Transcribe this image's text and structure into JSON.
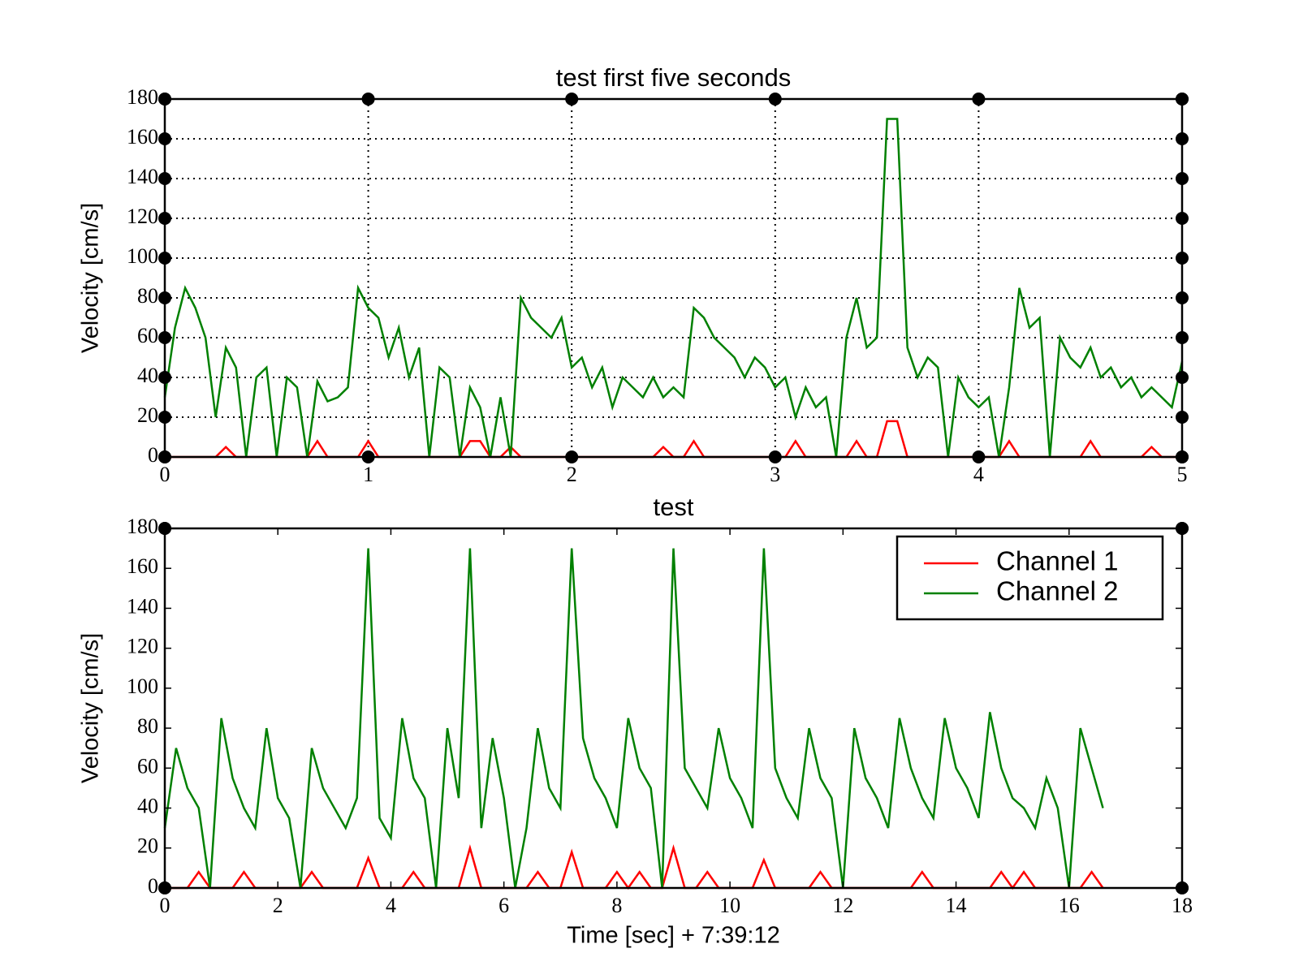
{
  "chart_data": [
    {
      "type": "line",
      "title": "test first five seconds",
      "ylabel": "Velocity [cm/s]",
      "grid": true,
      "xlim": [
        0,
        5
      ],
      "xticks": [
        0,
        1,
        2,
        3,
        4,
        5
      ],
      "ylim": [
        0,
        180
      ],
      "yticks": [
        0,
        20,
        40,
        60,
        80,
        100,
        120,
        140,
        160,
        180
      ],
      "x": [
        0,
        0.05,
        0.1,
        0.15,
        0.2,
        0.25,
        0.3,
        0.35,
        0.4,
        0.45,
        0.5,
        0.55,
        0.6,
        0.65,
        0.7,
        0.75,
        0.8,
        0.85,
        0.9,
        0.95,
        1,
        1.05,
        1.1,
        1.15,
        1.2,
        1.25,
        1.3,
        1.35,
        1.4,
        1.45,
        1.5,
        1.55,
        1.6,
        1.65,
        1.7,
        1.75,
        1.8,
        1.85,
        1.9,
        1.95,
        2,
        2.05,
        2.1,
        2.15,
        2.2,
        2.25,
        2.3,
        2.35,
        2.4,
        2.45,
        2.5,
        2.55,
        2.6,
        2.65,
        2.7,
        2.75,
        2.8,
        2.85,
        2.9,
        2.95,
        3,
        3.05,
        3.1,
        3.15,
        3.2,
        3.25,
        3.3,
        3.35,
        3.4,
        3.45,
        3.5,
        3.55,
        3.6,
        3.65,
        3.7,
        3.75,
        3.8,
        3.85,
        3.9,
        3.95,
        4,
        4.05,
        4.1,
        4.15,
        4.2,
        4.25,
        4.3,
        4.35,
        4.4,
        4.45,
        4.5,
        4.55,
        4.6,
        4.65,
        4.7,
        4.75,
        4.8,
        4.85,
        4.9,
        4.95,
        5
      ],
      "series": [
        {
          "color": "#ff0000",
          "values": [
            0,
            0,
            0,
            0,
            0,
            0,
            5,
            0,
            0,
            0,
            0,
            0,
            0,
            0,
            0,
            8,
            0,
            0,
            0,
            0,
            8,
            0,
            0,
            0,
            0,
            0,
            0,
            0,
            0,
            0,
            8,
            8,
            0,
            0,
            5,
            0,
            0,
            0,
            0,
            0,
            0,
            0,
            0,
            0,
            0,
            0,
            0,
            0,
            0,
            5,
            0,
            0,
            8,
            0,
            0,
            0,
            0,
            0,
            0,
            0,
            0,
            0,
            8,
            0,
            0,
            0,
            0,
            0,
            8,
            0,
            0,
            18,
            18,
            0,
            0,
            0,
            0,
            0,
            0,
            0,
            0,
            0,
            0,
            8,
            0,
            0,
            0,
            0,
            0,
            0,
            0,
            8,
            0,
            0,
            0,
            0,
            0,
            5,
            0,
            0,
            0
          ]
        },
        {
          "color": "#008000",
          "values": [
            30,
            65,
            85,
            75,
            60,
            20,
            55,
            45,
            0,
            40,
            45,
            0,
            40,
            35,
            0,
            38,
            28,
            30,
            35,
            85,
            75,
            70,
            50,
            65,
            40,
            55,
            0,
            45,
            40,
            0,
            35,
            25,
            0,
            30,
            0,
            80,
            70,
            65,
            60,
            70,
            45,
            50,
            35,
            45,
            25,
            40,
            35,
            30,
            40,
            30,
            35,
            30,
            75,
            70,
            60,
            55,
            50,
            40,
            50,
            45,
            35,
            40,
            20,
            35,
            25,
            30,
            0,
            60,
            80,
            55,
            60,
            170,
            170,
            55,
            40,
            50,
            45,
            0,
            40,
            30,
            25,
            30,
            0,
            35,
            85,
            65,
            70,
            0,
            60,
            50,
            45,
            55,
            40,
            45,
            35,
            40,
            30,
            35,
            30,
            25,
            48
          ]
        }
      ]
    },
    {
      "type": "line",
      "title": "test",
      "ylabel": "Velocity [cm/s]",
      "xlabel": "Time [sec] + 7:39:12",
      "grid": false,
      "legend": "upper right",
      "xlim": [
        0,
        18
      ],
      "xticks": [
        0,
        2,
        4,
        6,
        8,
        10,
        12,
        14,
        16,
        18
      ],
      "ylim": [
        0,
        180
      ],
      "yticks": [
        0,
        20,
        40,
        60,
        80,
        100,
        120,
        140,
        160,
        180
      ],
      "x": [
        0,
        0.2,
        0.4,
        0.6,
        0.8,
        1,
        1.2,
        1.4,
        1.6,
        1.8,
        2,
        2.2,
        2.4,
        2.6,
        2.8,
        3,
        3.2,
        3.4,
        3.6,
        3.8,
        4,
        4.2,
        4.4,
        4.6,
        4.8,
        5,
        5.2,
        5.4,
        5.6,
        5.8,
        6,
        6.2,
        6.4,
        6.6,
        6.8,
        7,
        7.2,
        7.4,
        7.6,
        7.8,
        8,
        8.2,
        8.4,
        8.6,
        8.8,
        9,
        9.2,
        9.4,
        9.6,
        9.8,
        10,
        10.2,
        10.4,
        10.6,
        10.8,
        11,
        11.2,
        11.4,
        11.6,
        11.8,
        12,
        12.2,
        12.4,
        12.6,
        12.8,
        13,
        13.2,
        13.4,
        13.6,
        13.8,
        14,
        14.2,
        14.4,
        14.6,
        14.8,
        15,
        15.2,
        15.4,
        15.6,
        15.8,
        16,
        16.2,
        16.4,
        16.6
      ],
      "series": [
        {
          "name": "Channel 1",
          "color": "#ff0000",
          "values": [
            0,
            0,
            0,
            8,
            0,
            0,
            0,
            8,
            0,
            0,
            0,
            0,
            0,
            8,
            0,
            0,
            0,
            0,
            15,
            0,
            0,
            0,
            8,
            0,
            0,
            0,
            0,
            20,
            0,
            0,
            0,
            0,
            0,
            8,
            0,
            0,
            18,
            0,
            0,
            0,
            8,
            0,
            8,
            0,
            0,
            20,
            0,
            0,
            8,
            0,
            0,
            0,
            0,
            14,
            0,
            0,
            0,
            0,
            8,
            0,
            0,
            0,
            0,
            0,
            0,
            0,
            0,
            8,
            0,
            0,
            0,
            0,
            0,
            0,
            8,
            0,
            8,
            0,
            0,
            0,
            0,
            0,
            8,
            0
          ]
        },
        {
          "name": "Channel 2",
          "color": "#008000",
          "values": [
            30,
            70,
            50,
            40,
            0,
            85,
            55,
            40,
            30,
            80,
            45,
            35,
            0,
            70,
            50,
            40,
            30,
            45,
            170,
            35,
            25,
            85,
            55,
            45,
            0,
            80,
            45,
            170,
            30,
            75,
            45,
            0,
            30,
            80,
            50,
            40,
            170,
            75,
            55,
            45,
            30,
            85,
            60,
            50,
            0,
            170,
            60,
            50,
            40,
            80,
            55,
            45,
            30,
            170,
            60,
            45,
            35,
            80,
            55,
            45,
            0,
            80,
            55,
            45,
            30,
            85,
            60,
            45,
            35,
            85,
            60,
            50,
            35,
            88,
            60,
            45,
            40,
            30,
            55,
            40,
            0,
            80,
            60,
            40
          ]
        }
      ]
    }
  ]
}
